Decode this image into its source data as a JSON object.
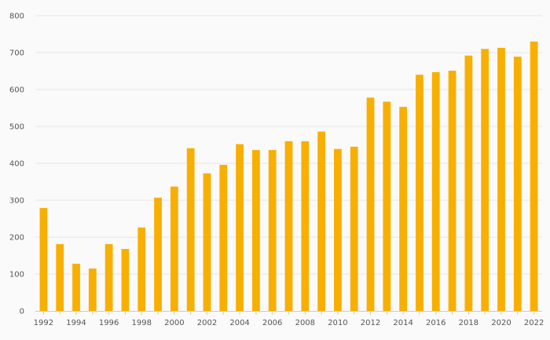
{
  "chart_data": {
    "type": "bar",
    "title": "",
    "xlabel": "",
    "ylabel": "",
    "ylim": [
      0,
      800
    ],
    "yticks": [
      0,
      100,
      200,
      300,
      400,
      500,
      600,
      700,
      800
    ],
    "grid": true,
    "legend": "none",
    "bar_color": "#F8AF00",
    "categories": [
      "1992",
      "1993",
      "1994",
      "1995",
      "1996",
      "1997",
      "1998",
      "1999",
      "2000",
      "2001",
      "2002",
      "2003",
      "2004",
      "2005",
      "2006",
      "2007",
      "2008",
      "2009",
      "2010",
      "2011",
      "2012",
      "2013",
      "2014",
      "2015",
      "2016",
      "2017",
      "2018",
      "2019",
      "2020",
      "2021",
      "2022"
    ],
    "values": [
      279,
      181,
      128,
      115,
      181,
      168,
      226,
      307,
      337,
      441,
      373,
      396,
      452,
      436,
      436,
      460,
      460,
      486,
      439,
      445,
      578,
      567,
      553,
      640,
      647,
      651,
      692,
      710,
      713,
      689,
      730
    ],
    "xtick_labels": [
      "1992",
      "1994",
      "1996",
      "1998",
      "2000",
      "2002",
      "2004",
      "2006",
      "2008",
      "2010",
      "2012",
      "2014",
      "2016",
      "2018",
      "2020",
      "2022"
    ]
  }
}
